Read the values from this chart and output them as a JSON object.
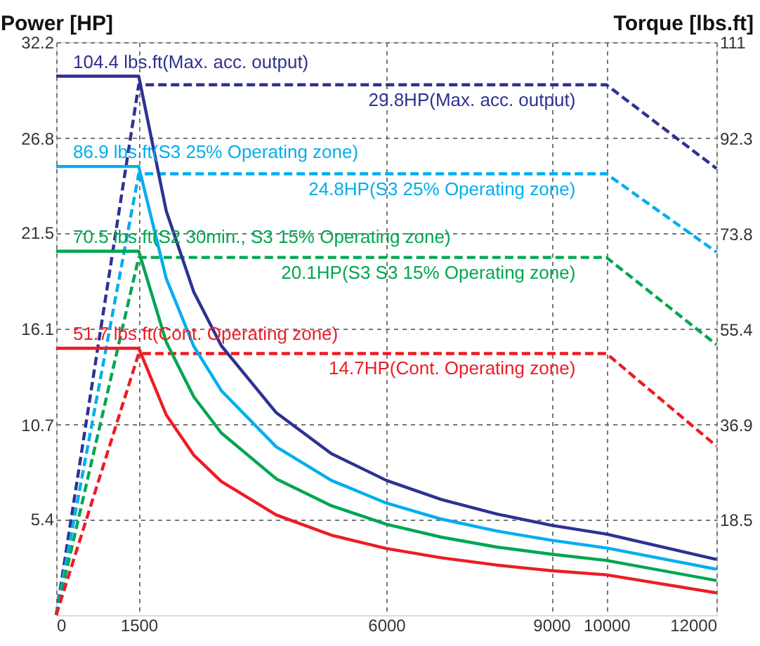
{
  "chart_data": {
    "type": "line",
    "xlabel": null,
    "ylabel": "Power [HP]",
    "y2label": "Torque [lbs.ft]",
    "xlim": [
      0,
      12000
    ],
    "xticks": [
      0,
      1500,
      6000,
      9000,
      10000,
      12000
    ],
    "ylim": [
      0,
      32.2
    ],
    "yticks": [
      5.4,
      10.7,
      16.1,
      21.5,
      26.8,
      32.2
    ],
    "y2lim": [
      0,
      111
    ],
    "y2ticks": [
      18.5,
      36.9,
      55.4,
      73.8,
      92.3,
      111
    ],
    "grid": true,
    "series": [
      {
        "axis": "y2",
        "line_style": "solid",
        "color": "#2e3192",
        "x": [
          0,
          1500,
          2000,
          2500,
          3000,
          4000,
          5000,
          6000,
          7000,
          8000,
          9000,
          10000,
          12000
        ],
        "values": [
          104.4,
          104.4,
          78.3,
          62.6,
          52.2,
          39.2,
          31.3,
          26.1,
          22.4,
          19.6,
          17.4,
          15.7,
          10.8
        ]
      },
      {
        "line_style": "dashed",
        "color": "#2e3192",
        "x": [
          0,
          1500,
          10000,
          12000
        ],
        "values": [
          0,
          29.8,
          29.8,
          25.1
        ]
      },
      {
        "axis": "y2",
        "line_style": "solid",
        "color": "#00aeef",
        "x": [
          0,
          1500,
          2000,
          2500,
          3000,
          4000,
          5000,
          6000,
          7000,
          8000,
          9000,
          10000,
          12000
        ],
        "values": [
          86.9,
          86.9,
          65.2,
          52.1,
          43.5,
          32.6,
          26.1,
          21.7,
          18.6,
          16.3,
          14.5,
          13.0,
          8.9
        ]
      },
      {
        "line_style": "dashed",
        "color": "#00aeef",
        "x": [
          0,
          1500,
          10000,
          12000
        ],
        "values": [
          0,
          24.8,
          24.8,
          20.4
        ]
      },
      {
        "axis": "y2",
        "line_style": "solid",
        "color": "#00a651",
        "x": [
          0,
          1500,
          2000,
          2500,
          3000,
          4000,
          5000,
          6000,
          7000,
          8000,
          9000,
          10000,
          12000
        ],
        "values": [
          70.5,
          70.5,
          52.9,
          42.3,
          35.3,
          26.4,
          21.2,
          17.6,
          15.1,
          13.2,
          11.8,
          10.6,
          6.7
        ]
      },
      {
        "line_style": "dashed",
        "color": "#00a651",
        "x": [
          0,
          1500,
          10000,
          12000
        ],
        "values": [
          0,
          20.1,
          20.1,
          15.2
        ]
      },
      {
        "axis": "y2",
        "line_style": "solid",
        "color": "#ed1c24",
        "x": [
          0,
          1500,
          2000,
          2500,
          3000,
          4000,
          5000,
          6000,
          7000,
          8000,
          9000,
          10000,
          12000
        ],
        "values": [
          51.7,
          51.7,
          38.8,
          31.0,
          25.9,
          19.4,
          15.5,
          12.9,
          11.1,
          9.7,
          8.6,
          7.8,
          4.3
        ]
      },
      {
        "line_style": "dashed",
        "color": "#ed1c24",
        "x": [
          0,
          1500,
          10000,
          12000
        ],
        "values": [
          0,
          14.7,
          14.7,
          9.5
        ]
      }
    ],
    "annotations": [
      "104.4 lbs.ft(Max. acc. output)",
      "29.8HP(Max. acc. output)",
      "86.9 lbs.ft(S3 25% Operating zone)",
      "24.8HP(S3 25% Operating zone)",
      "70.5 lbs.ft(S2 30min., S3 15% Operating zone)",
      "20.1HP(S3 S3 15% Operating zone)",
      "51.7 lbs.ft(Cont.  Operating zone)",
      "14.7HP(Cont.  Operating zone)"
    ]
  }
}
